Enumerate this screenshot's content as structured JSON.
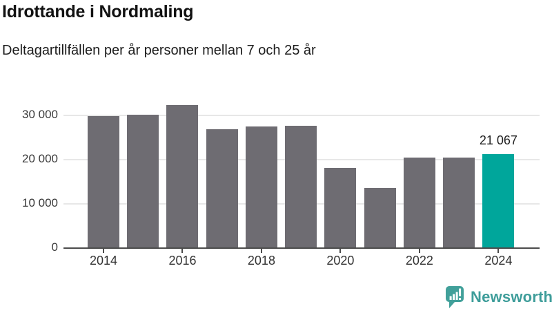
{
  "header": {
    "title": "Idrottande i Nordmaling",
    "subtitle": "Deltagartillfällen per år personer mellan 7 och 25 år"
  },
  "chart_data": {
    "type": "bar",
    "title": "Idrottande i Nordmaling",
    "subtitle": "Deltagartillfällen per år personer mellan 7 och 25 år",
    "categories": [
      2014,
      2015,
      2016,
      2017,
      2018,
      2019,
      2020,
      2021,
      2022,
      2023,
      2024
    ],
    "values": [
      29700,
      30100,
      32300,
      26800,
      27400,
      27500,
      18000,
      13400,
      20300,
      20300,
      21067
    ],
    "highlight_year": 2024,
    "annotation": {
      "year": 2024,
      "text": "21 067"
    },
    "y_ticks": [
      {
        "value": 0,
        "label": "0"
      },
      {
        "value": 10000,
        "label": "10 000"
      },
      {
        "value": 20000,
        "label": "20 000"
      },
      {
        "value": 30000,
        "label": "30 000"
      }
    ],
    "x_tick_years": [
      2014,
      2016,
      2018,
      2020,
      2022,
      2024
    ],
    "ylim": [
      0,
      34100
    ],
    "grid": true,
    "legend": false,
    "colors": {
      "bar": "#6E6C72",
      "highlight": "#00A69B",
      "grid": "#E7E7E7",
      "axis": "#4B4B4B",
      "value_label": "#1F1F1F"
    }
  },
  "footer": {
    "brand": "Newsworthy",
    "brand_color": "#3E9D9A",
    "logo_bubble_color": "#41A09A"
  }
}
